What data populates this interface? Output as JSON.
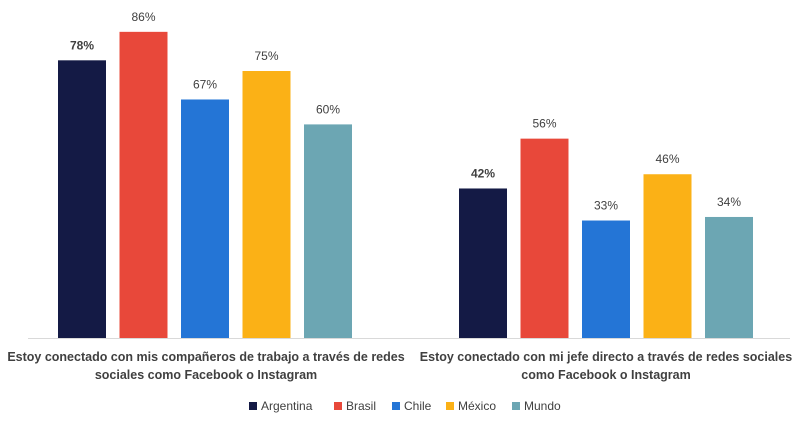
{
  "chart_data": {
    "type": "bar",
    "categories": [
      "Estoy conectado con mis compañeros de trabajo a través de redes sociales como Facebook o Instagram",
      "Estoy conectado con mi jefe directo a través de redes sociales como Facebook o Instagram"
    ],
    "category_lines": [
      [
        "Estoy conectado con mis compañeros de trabajo a través de redes",
        "sociales como Facebook o Instagram"
      ],
      [
        "Estoy conectado con mi jefe directo a través de redes sociales",
        "como Facebook o Instagram"
      ]
    ],
    "series": [
      {
        "name": "Argentina",
        "values": [
          78,
          42
        ],
        "labels": [
          "78%",
          "42%"
        ],
        "color": "#141a45",
        "bold_labels": true
      },
      {
        "name": "Brasil",
        "values": [
          86,
          56
        ],
        "labels": [
          "86%",
          "56%"
        ],
        "color": "#e8483a",
        "bold_labels": false
      },
      {
        "name": "Chile",
        "values": [
          67,
          33
        ],
        "labels": [
          "67%",
          "33%"
        ],
        "color": "#2475d6",
        "bold_labels": false
      },
      {
        "name": "México",
        "values": [
          75,
          46
        ],
        "labels": [
          "75%",
          "46%"
        ],
        "color": "#fbb116",
        "bold_labels": false
      },
      {
        "name": "Mundo",
        "values": [
          60,
          34
        ],
        "labels": [
          "60%",
          "34%"
        ],
        "color": "#6ca6b3",
        "bold_labels": false
      }
    ],
    "title": "",
    "xlabel": "",
    "ylabel": "",
    "ylim": [
      0,
      100
    ],
    "grid": false,
    "legend_position": "bottom",
    "baseline_color": "#d9d9d9",
    "label_color": "#404040"
  }
}
